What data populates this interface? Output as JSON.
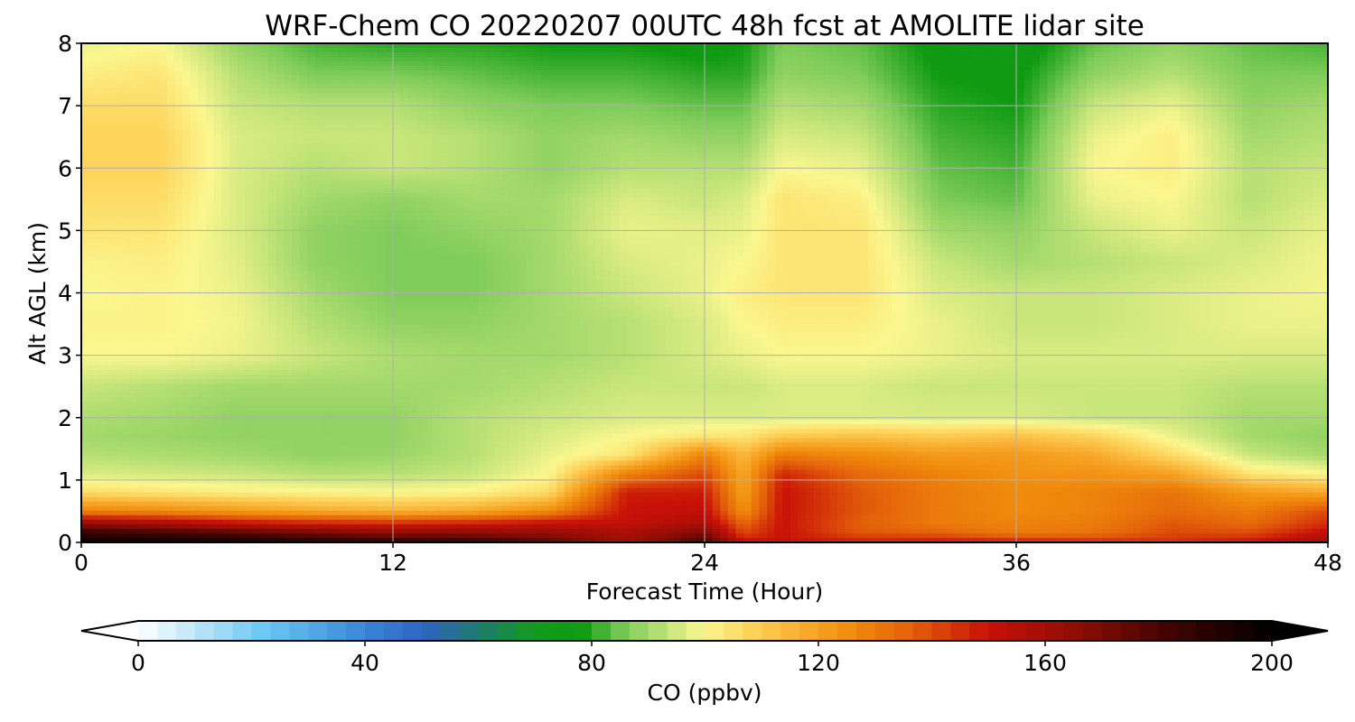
{
  "chart_data": {
    "type": "heatmap",
    "title": "WRF-Chem CO  20220207 00UTC 48h fcst at AMOLITE lidar site",
    "xlabel": "Forecast Time (Hour)",
    "ylabel": "Alt AGL (km)",
    "xlim": [
      0,
      48
    ],
    "ylim": [
      0,
      8
    ],
    "xticks": [
      0,
      12,
      24,
      36,
      48
    ],
    "yticks": [
      0,
      1,
      2,
      3,
      4,
      5,
      6,
      7,
      8
    ],
    "grid": true,
    "colorbar": {
      "label": "CO  (ppbv)",
      "min": 0,
      "max": 200,
      "ticks": [
        0,
        40,
        80,
        120,
        160,
        200
      ],
      "extend": "both",
      "colors": [
        {
          "v": 0,
          "c": "#ffffff"
        },
        {
          "v": 10,
          "c": "#bfe6f8"
        },
        {
          "v": 22,
          "c": "#6cc8f5"
        },
        {
          "v": 40,
          "c": "#3a86d6"
        },
        {
          "v": 50,
          "c": "#2f63c4"
        },
        {
          "v": 60,
          "c": "#1f7a70"
        },
        {
          "v": 70,
          "c": "#139a1c"
        },
        {
          "v": 78,
          "c": "#0f9a12"
        },
        {
          "v": 86,
          "c": "#7fcc5a"
        },
        {
          "v": 94,
          "c": "#c9e67c"
        },
        {
          "v": 100,
          "c": "#fbf78f"
        },
        {
          "v": 108,
          "c": "#fdd35a"
        },
        {
          "v": 118,
          "c": "#f8a82a"
        },
        {
          "v": 126,
          "c": "#f08b0c"
        },
        {
          "v": 136,
          "c": "#e4620a"
        },
        {
          "v": 150,
          "c": "#c81008"
        },
        {
          "v": 166,
          "c": "#8c0d05"
        },
        {
          "v": 182,
          "c": "#400300"
        },
        {
          "v": 200,
          "c": "#000000"
        }
      ]
    },
    "field": {
      "x": [
        0,
        3,
        6,
        9,
        12,
        15,
        18,
        21,
        24,
        25.5,
        27,
        30,
        33,
        36,
        39,
        42,
        45,
        48
      ],
      "y": [
        0,
        0.15,
        0.3,
        0.5,
        0.8,
        1.1,
        1.4,
        1.7,
        2,
        2.5,
        3,
        3.5,
        4,
        4.5,
        5,
        5.5,
        6,
        6.5,
        7,
        7.5,
        8
      ],
      "note_units": "ppbv",
      "values": [
        [
          196,
          196,
          194,
          190,
          188,
          186,
          176,
          160,
          180,
          152,
          150,
          148,
          150,
          148,
          146,
          145,
          150,
          160
        ],
        [
          186,
          182,
          178,
          172,
          166,
          166,
          164,
          158,
          170,
          140,
          150,
          138,
          136,
          130,
          132,
          140,
          140,
          152
        ],
        [
          165,
          160,
          152,
          148,
          146,
          148,
          152,
          152,
          158,
          135,
          150,
          136,
          130,
          128,
          130,
          138,
          134,
          145
        ],
        [
          128,
          126,
          122,
          118,
          116,
          118,
          126,
          150,
          152,
          125,
          150,
          138,
          130,
          126,
          128,
          134,
          130,
          140
        ],
        [
          106,
          104,
          102,
          101,
          100,
          101,
          106,
          148,
          148,
          120,
          150,
          138,
          130,
          126,
          128,
          132,
          122,
          118
        ],
        [
          96,
          95,
          94,
          92,
          92,
          94,
          100,
          128,
          140,
          118,
          146,
          134,
          128,
          124,
          124,
          120,
          104,
          100
        ],
        [
          92,
          91,
          90,
          88,
          89,
          92,
          98,
          104,
          128,
          114,
          130,
          126,
          122,
          122,
          118,
          106,
          94,
          90
        ],
        [
          90,
          89,
          88,
          88,
          88,
          92,
          96,
          100,
          104,
          104,
          110,
          112,
          110,
          112,
          108,
          98,
          90,
          88
        ],
        [
          91,
          90,
          88,
          88,
          88,
          92,
          94,
          96,
          96,
          96,
          96,
          96,
          96,
          96,
          94,
          94,
          90,
          90
        ],
        [
          94,
          92,
          90,
          90,
          90,
          90,
          92,
          94,
          94,
          94,
          96,
          96,
          94,
          94,
          94,
          94,
          92,
          92
        ],
        [
          100,
          100,
          98,
          94,
          91,
          90,
          90,
          92,
          96,
          98,
          100,
          100,
          98,
          96,
          96,
          96,
          96,
          96
        ],
        [
          101,
          101,
          99,
          92,
          88,
          88,
          90,
          92,
          96,
          100,
          102,
          102,
          98,
          94,
          94,
          96,
          98,
          98
        ],
        [
          100,
          101,
          98,
          90,
          86,
          86,
          90,
          94,
          98,
          102,
          104,
          104,
          96,
          94,
          94,
          96,
          98,
          99
        ],
        [
          101,
          102,
          97,
          88,
          86,
          86,
          90,
          96,
          98,
          100,
          104,
          104,
          94,
          90,
          92,
          94,
          96,
          99
        ],
        [
          104,
          104,
          96,
          88,
          86,
          88,
          90,
          98,
          97,
          98,
          104,
          104,
          90,
          88,
          94,
          98,
          94,
          98
        ],
        [
          106,
          106,
          96,
          90,
          88,
          90,
          90,
          96,
          94,
          96,
          104,
          102,
          86,
          84,
          98,
          100,
          92,
          96
        ],
        [
          108,
          108,
          96,
          92,
          94,
          92,
          88,
          92,
          92,
          92,
          100,
          98,
          84,
          82,
          100,
          102,
          92,
          94
        ],
        [
          108,
          108,
          96,
          94,
          94,
          92,
          88,
          90,
          88,
          88,
          96,
          94,
          82,
          80,
          98,
          102,
          90,
          92
        ],
        [
          106,
          106,
          94,
          92,
          92,
          88,
          86,
          86,
          84,
          84,
          92,
          90,
          80,
          78,
          94,
          98,
          88,
          90
        ],
        [
          102,
          104,
          92,
          86,
          86,
          84,
          82,
          82,
          80,
          80,
          88,
          86,
          78,
          77,
          88,
          92,
          86,
          86
        ],
        [
          98,
          100,
          88,
          82,
          80,
          80,
          78,
          78,
          76,
          78,
          86,
          84,
          76,
          74,
          84,
          88,
          84,
          82
        ]
      ]
    }
  }
}
